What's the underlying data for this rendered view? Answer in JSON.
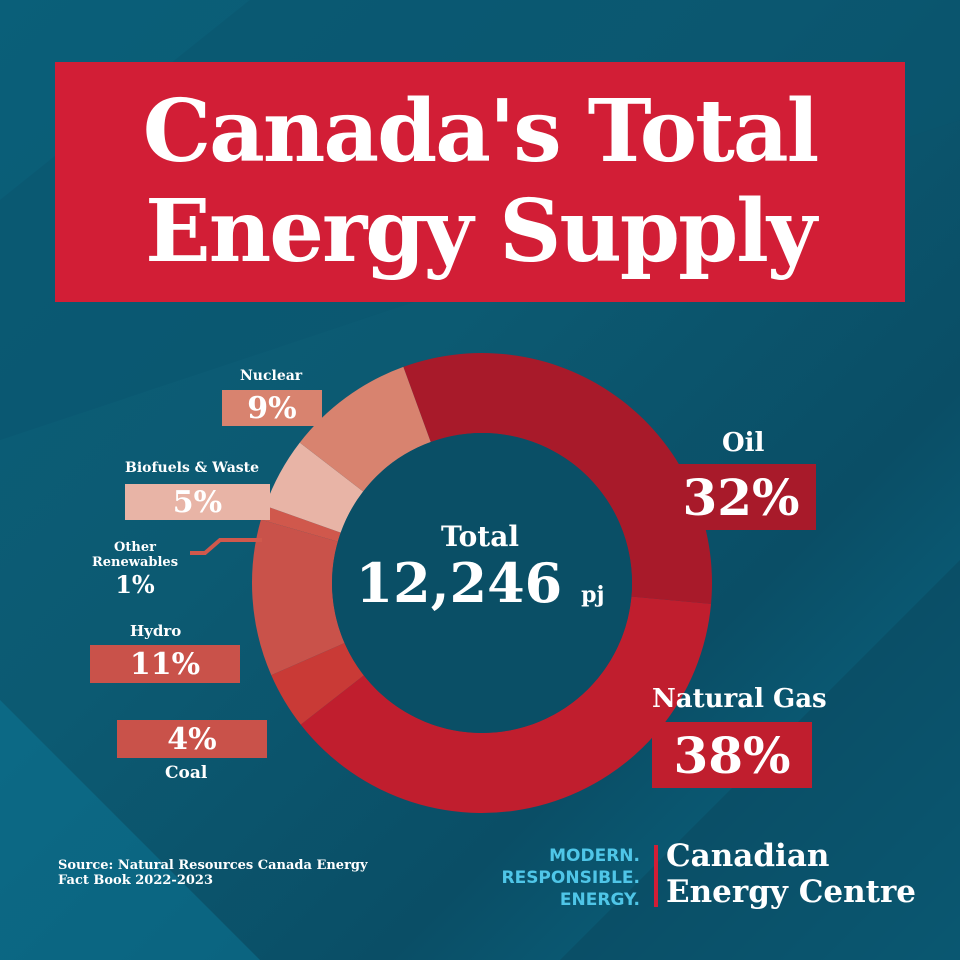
{
  "title": {
    "line1": "Canada's Total",
    "line2": "Energy Supply"
  },
  "center": {
    "label": "Total",
    "value": "12,246",
    "unit": "pj"
  },
  "labels": {
    "oil": {
      "name": "Oil",
      "pct": "32%"
    },
    "natural_gas": {
      "name": "Natural Gas",
      "pct": "38%"
    },
    "coal": {
      "name": "Coal",
      "pct": "4%"
    },
    "hydro": {
      "name": "Hydro",
      "pct": "11%"
    },
    "other_renewables": {
      "name1": "Other",
      "name2": "Renewables",
      "pct": "1%"
    },
    "biofuels": {
      "name": "Biofuels & Waste",
      "pct": "5%"
    },
    "nuclear": {
      "name": "Nuclear",
      "pct": "9%"
    }
  },
  "source": {
    "line1": "Source: Natural Resources Canada Energy",
    "line2": "Fact Book 2022-2023"
  },
  "brand": {
    "tag1": "MODERN.",
    "tag2": "RESPONSIBLE.",
    "tag3": "ENERGY.",
    "name1": "Canadian",
    "name2": "Energy Centre"
  },
  "colors": {
    "oil": "#a81a2a",
    "natural_gas": "#c01e2e",
    "coal": "#c93a36",
    "hydro": "#c9524a",
    "other_renewables": "#d0584c",
    "biofuels": "#e8b4a6",
    "nuclear": "#d8836f",
    "title_bg": "#d21e36"
  },
  "chart_data": {
    "type": "pie",
    "title": "Canada's Total Energy Supply",
    "subtitle": "Total 12,246 pj",
    "categories": [
      "Oil",
      "Natural Gas",
      "Coal",
      "Hydro",
      "Other Renewables",
      "Biofuels & Waste",
      "Nuclear"
    ],
    "values": [
      32,
      38,
      4,
      11,
      1,
      5,
      9
    ],
    "unit": "%",
    "total": 12246,
    "total_unit": "pj",
    "donut": true,
    "source": "Natural Resources Canada Energy Fact Book 2022-2023"
  }
}
